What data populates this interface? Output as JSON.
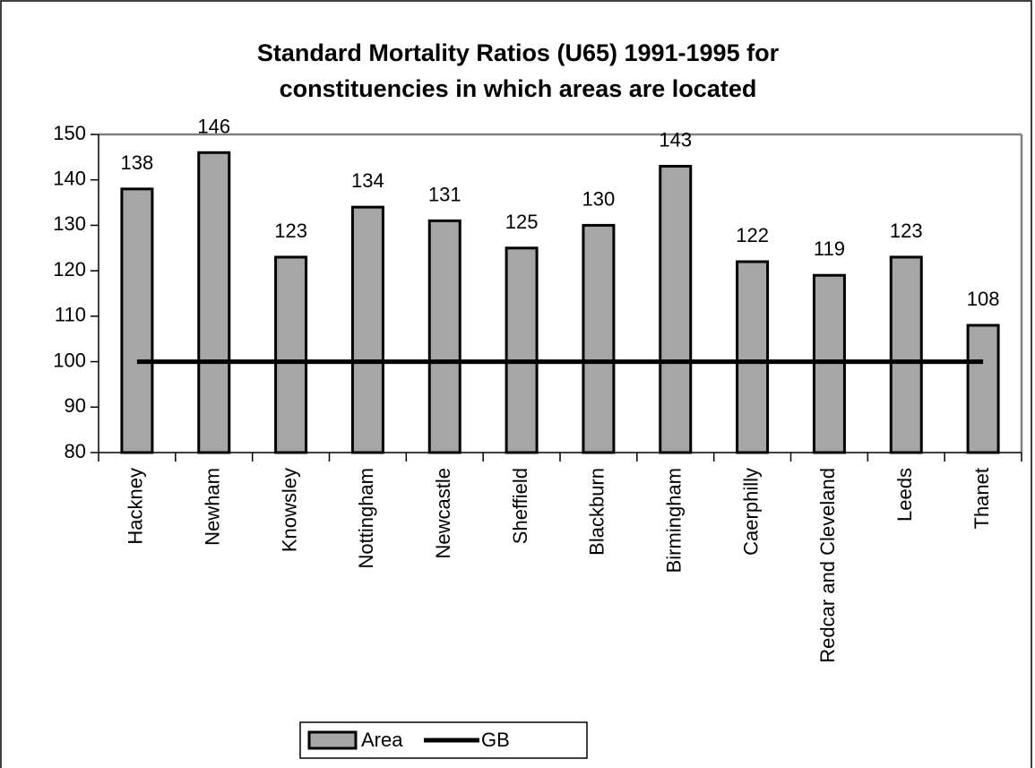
{
  "chart_data": {
    "type": "bar",
    "title": [
      "Standard Mortality Ratios (U65) 1991-1995 for",
      "constituencies in which areas are located"
    ],
    "categories": [
      "Hackney",
      "Newham",
      "Knowsley",
      "Nottingham",
      "Newcastle",
      "Sheffield",
      "Blackburn",
      "Birmingham",
      "Caerphilly",
      "Redcar and Cleveland",
      "Leeds",
      "Thanet"
    ],
    "series": [
      {
        "name": "Area",
        "type": "bar",
        "color": "#a6a6a6",
        "values": [
          138,
          146,
          123,
          134,
          131,
          125,
          130,
          143,
          122,
          119,
          123,
          108
        ]
      },
      {
        "name": "GB",
        "type": "line",
        "color": "#000000",
        "values": [
          100,
          100,
          100,
          100,
          100,
          100,
          100,
          100,
          100,
          100,
          100,
          100
        ]
      }
    ],
    "ylim": [
      80,
      150
    ],
    "yticks": [
      80,
      90,
      100,
      110,
      120,
      130,
      140,
      150
    ],
    "legend": "bottom"
  }
}
